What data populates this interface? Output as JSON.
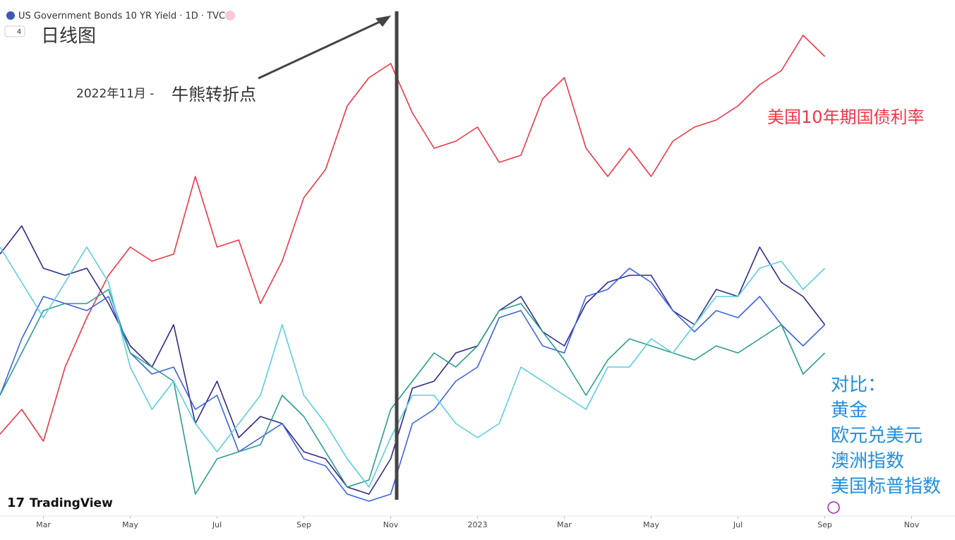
{
  "header": {
    "title": "US Government Bonds 10 YR Yield · 1D · TVC",
    "badge": "4"
  },
  "chart_data": {
    "type": "line",
    "title": "日线图",
    "x": [
      1,
      1.5,
      2,
      2.5,
      3,
      3.5,
      4,
      4.5,
      5,
      5.5,
      6,
      6.5,
      7,
      7.5,
      8,
      8.5,
      9,
      9.5,
      10,
      10.5,
      11,
      11.5,
      12,
      12.5,
      13,
      13.5,
      14,
      14.5,
      15,
      15.5,
      16,
      16.5,
      17,
      17.5,
      18,
      18.5,
      19,
      19.5,
      20
    ],
    "xlim": [
      1,
      23
    ],
    "xticks": [
      {
        "value": 2,
        "label": "Mar"
      },
      {
        "value": 4,
        "label": "May"
      },
      {
        "value": 6,
        "label": "Jul"
      },
      {
        "value": 8,
        "label": "Sep"
      },
      {
        "value": 10,
        "label": "Nov"
      },
      {
        "value": 12,
        "label": "2023"
      },
      {
        "value": 14,
        "label": "Mar"
      },
      {
        "value": 16,
        "label": "May"
      },
      {
        "value": 18,
        "label": "Jul"
      },
      {
        "value": 20,
        "label": "Sep"
      },
      {
        "value": 22,
        "label": "Nov"
      }
    ],
    "ylim": [
      0,
      715
    ],
    "series": [
      {
        "name": "美国10年期国债利率",
        "color": "#f23645",
        "values": [
          115,
          150,
          105,
          210,
          280,
          340,
          380,
          360,
          370,
          480,
          380,
          390,
          300,
          360,
          450,
          490,
          580,
          620,
          640,
          570,
          520,
          530,
          550,
          500,
          510,
          590,
          620,
          520,
          480,
          520,
          480,
          530,
          550,
          560,
          580,
          610,
          630,
          680,
          650
        ]
      },
      {
        "color": "#2e2a8f",
        "values": [
          370,
          410,
          350,
          340,
          350,
          300,
          240,
          210,
          270,
          130,
          190,
          110,
          140,
          130,
          90,
          80,
          40,
          30,
          80,
          180,
          190,
          230,
          240,
          290,
          310,
          260,
          240,
          300,
          330,
          340,
          340,
          290,
          270,
          320,
          310,
          380,
          330,
          310,
          270
        ]
      },
      {
        "color": "#3d63e6",
        "values": [
          170,
          250,
          310,
          300,
          290,
          310,
          230,
          200,
          210,
          150,
          170,
          90,
          110,
          130,
          80,
          70,
          30,
          20,
          30,
          130,
          150,
          190,
          210,
          280,
          290,
          240,
          230,
          310,
          320,
          350,
          330,
          290,
          260,
          290,
          280,
          310,
          270,
          240,
          270
        ]
      },
      {
        "color": "#2a9d8f",
        "values": [
          170,
          230,
          290,
          300,
          300,
          320,
          230,
          210,
          190,
          30,
          80,
          90,
          100,
          170,
          140,
          90,
          40,
          50,
          150,
          190,
          230,
          210,
          240,
          290,
          300,
          260,
          220,
          170,
          220,
          250,
          240,
          230,
          220,
          240,
          230,
          250,
          270,
          200,
          230
        ]
      },
      {
        "color": "#5ccfe0",
        "values": [
          380,
          330,
          280,
          330,
          380,
          330,
          210,
          150,
          190,
          130,
          90,
          130,
          170,
          270,
          170,
          130,
          80,
          40,
          110,
          170,
          170,
          130,
          110,
          130,
          210,
          190,
          170,
          150,
          210,
          210,
          250,
          230,
          270,
          310,
          310,
          350,
          360,
          320,
          350
        ]
      }
    ],
    "annotations": {
      "turning_point_date": "2022年11月 -",
      "turning_point": "牛熊转折点",
      "comparison": [
        "对比：",
        "黄金",
        "欧元兑美元",
        "澳洲指数",
        "美国标普指数"
      ]
    },
    "watermark": "TradingView"
  }
}
